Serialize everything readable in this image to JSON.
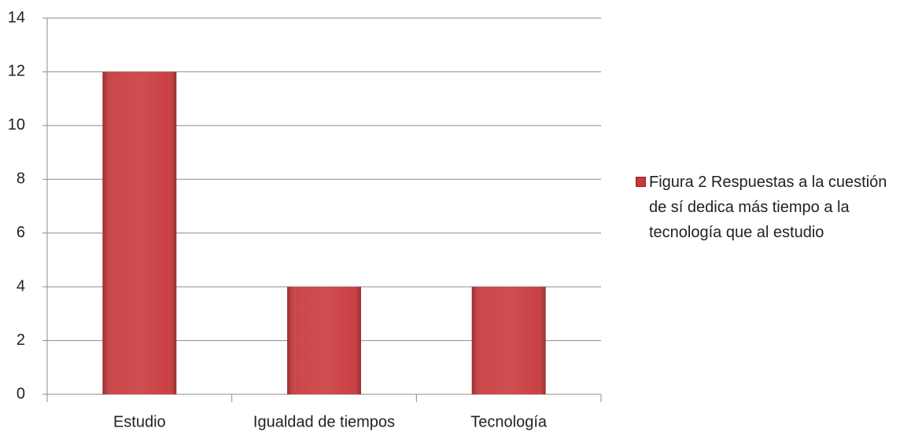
{
  "chart_data": {
    "type": "bar",
    "categories": [
      "Estudio",
      "Igualdad de tiempos",
      "Tecnología"
    ],
    "series": [
      {
        "name": "Figura 2 Respuestas a la cuestión de sí dedica más tiempo a la tecnología que al estudio",
        "color": "#c8373a",
        "values": [
          12,
          4,
          4
        ]
      }
    ],
    "ylim": [
      0,
      14
    ],
    "yticks": [
      0,
      2,
      4,
      6,
      8,
      10,
      12,
      14
    ],
    "grid": true,
    "legend": "right"
  }
}
